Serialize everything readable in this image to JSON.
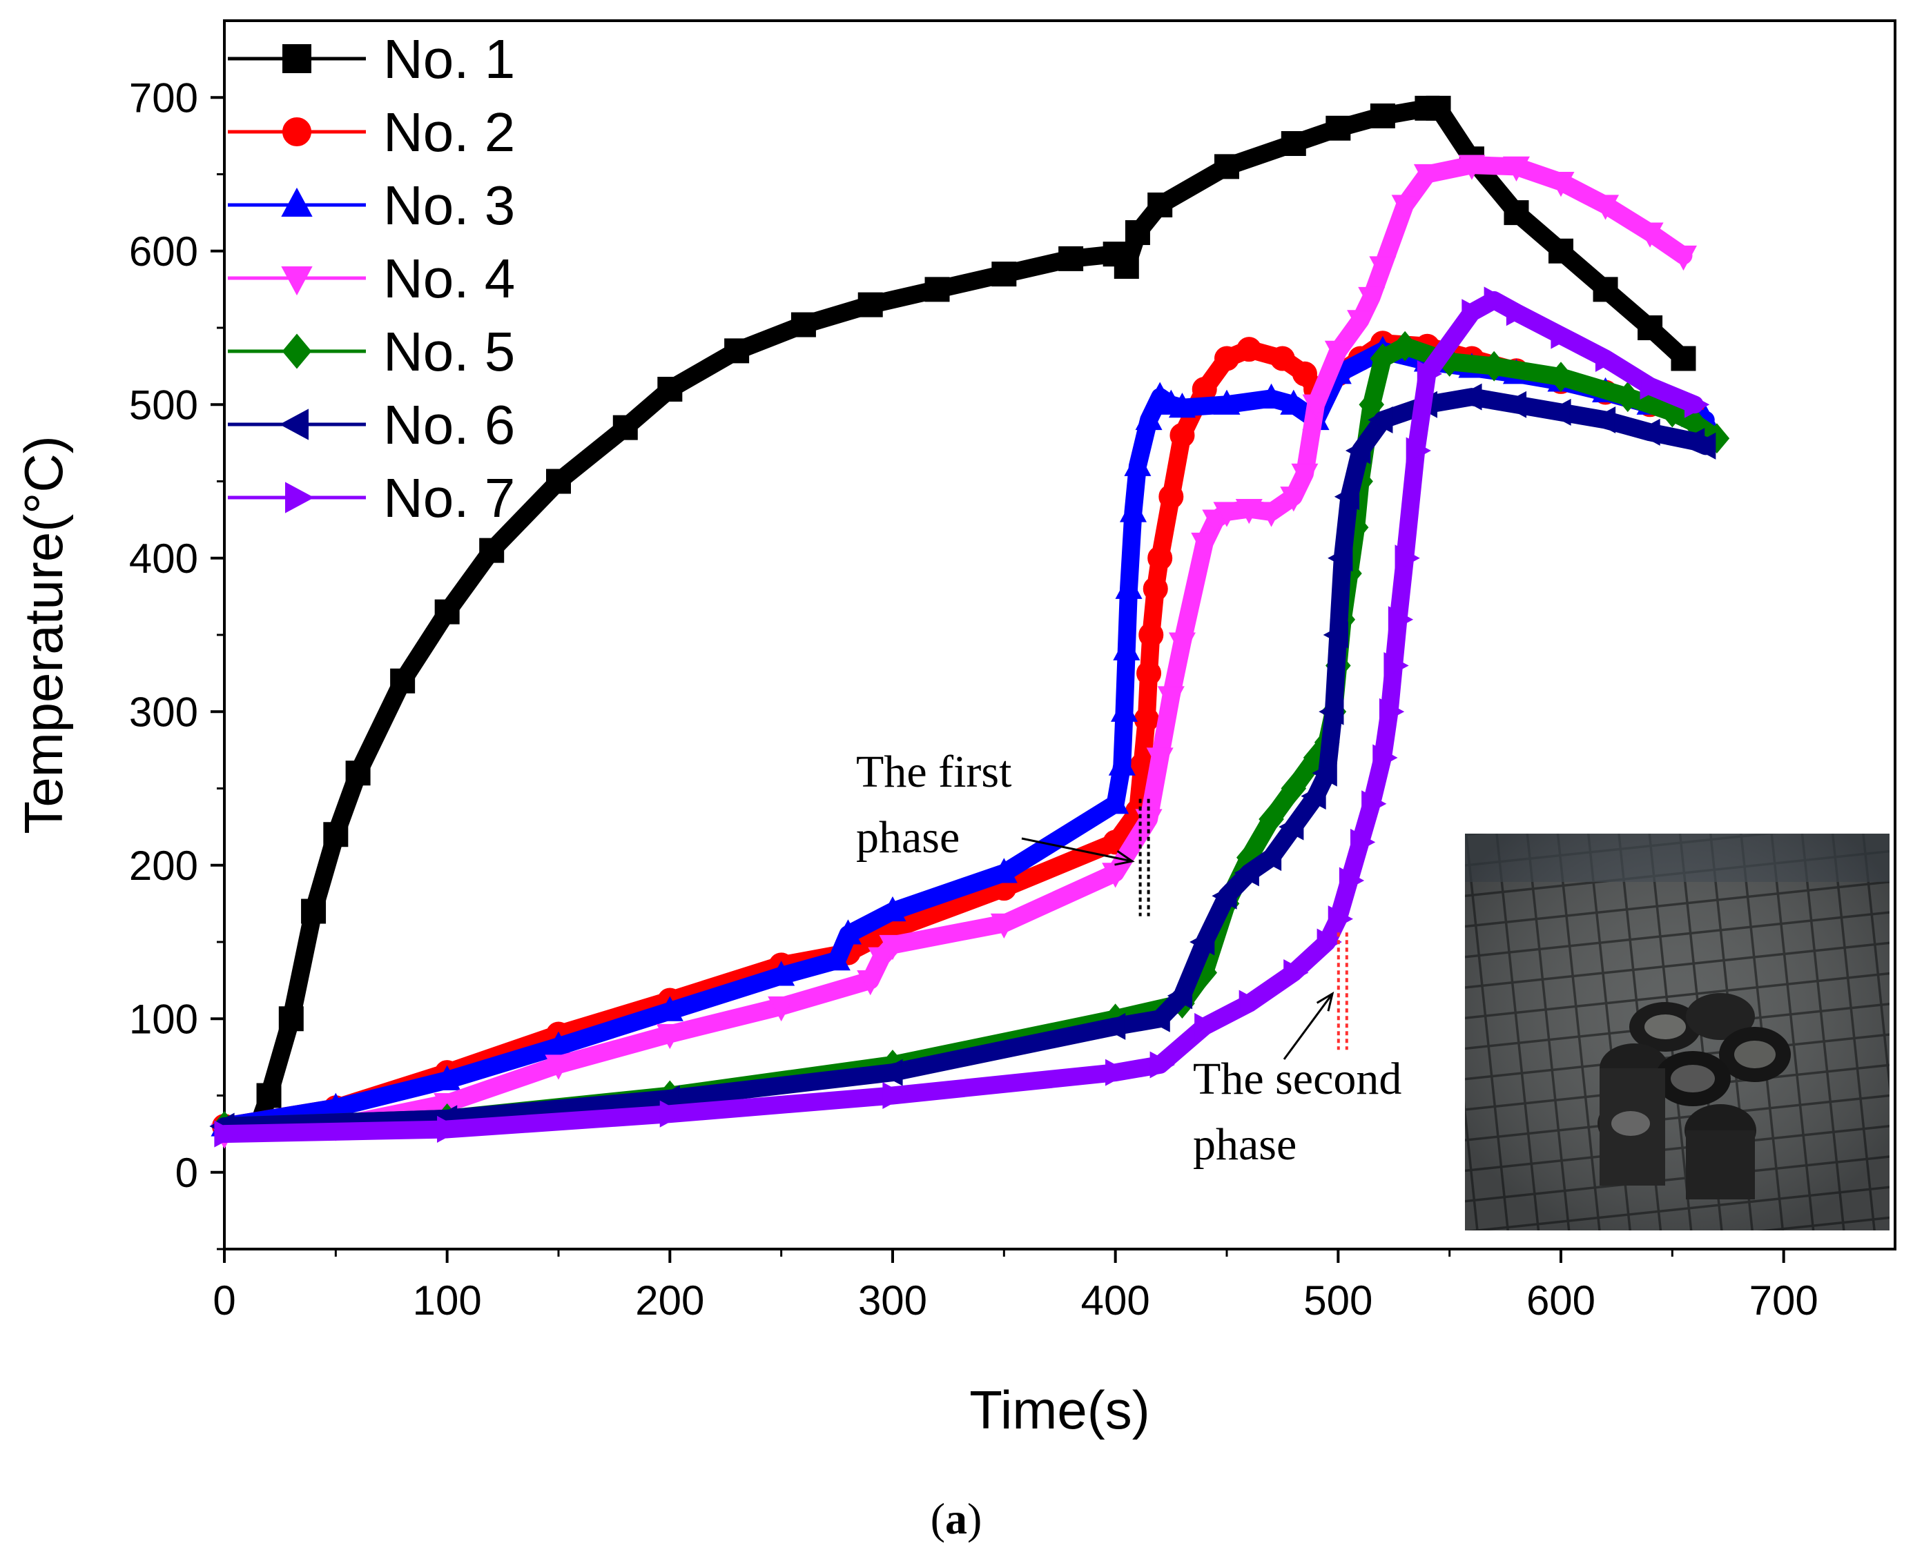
{
  "chart_data": {
    "type": "line",
    "title": "",
    "xlabel": "Time(s)",
    "ylabel": "Temperature(°C)",
    "xlim": [
      0,
      750
    ],
    "ylim": [
      -50,
      750
    ],
    "xticks": [
      0,
      100,
      200,
      300,
      400,
      500,
      600,
      700
    ],
    "yticks": [
      0,
      100,
      200,
      300,
      400,
      500,
      600,
      700
    ],
    "legend_position": "top-left",
    "series": [
      {
        "name": "No. 1",
        "color": "#000000",
        "marker": "square",
        "x": [
          15,
          20,
          30,
          40,
          50,
          60,
          80,
          100,
          120,
          150,
          180,
          200,
          230,
          260,
          290,
          320,
          350,
          380,
          400,
          405,
          410,
          420,
          450,
          480,
          500,
          520,
          540,
          545,
          560,
          580,
          600,
          620,
          640,
          655
        ],
        "y": [
          30,
          50,
          100,
          170,
          220,
          260,
          320,
          365,
          405,
          450,
          485,
          510,
          535,
          552,
          565,
          575,
          585,
          595,
          598,
          590,
          612,
          630,
          655,
          670,
          680,
          688,
          693,
          693,
          660,
          625,
          600,
          575,
          550,
          530
        ]
      },
      {
        "name": "No. 2",
        "color": "#ff0000",
        "marker": "circle",
        "x": [
          0,
          50,
          100,
          150,
          200,
          250,
          280,
          300,
          350,
          400,
          410,
          412,
          414,
          415,
          416,
          418,
          420,
          425,
          430,
          440,
          450,
          460,
          475,
          485,
          490,
          500,
          510,
          520,
          540,
          560,
          580,
          600,
          620,
          640,
          660
        ],
        "y": [
          30,
          42,
          65,
          90,
          112,
          135,
          143,
          158,
          185,
          215,
          235,
          265,
          295,
          325,
          350,
          380,
          400,
          440,
          480,
          510,
          530,
          536,
          530,
          520,
          510,
          520,
          530,
          540,
          538,
          530,
          522,
          515,
          508,
          500,
          495
        ]
      },
      {
        "name": "No. 3",
        "color": "#0000ff",
        "marker": "triangle-up",
        "x": [
          0,
          50,
          100,
          150,
          200,
          250,
          275,
          280,
          300,
          350,
          400,
          403,
          404,
          405,
          406,
          408,
          410,
          415,
          420,
          425,
          430,
          450,
          470,
          480,
          490,
          500,
          520,
          540,
          560,
          580,
          600,
          620,
          640,
          660,
          665
        ],
        "y": [
          30,
          42,
          60,
          82,
          105,
          128,
          138,
          155,
          170,
          195,
          240,
          265,
          300,
          340,
          380,
          430,
          460,
          490,
          505,
          500,
          498,
          500,
          504,
          500,
          490,
          520,
          535,
          528,
          524,
          520,
          515,
          508,
          500,
          492,
          490
        ]
      },
      {
        "name": "No. 4",
        "color": "#ff33ff",
        "marker": "triangle-down",
        "x": [
          0,
          50,
          100,
          150,
          200,
          250,
          290,
          295,
          300,
          350,
          400,
          415,
          420,
          425,
          430,
          440,
          445,
          450,
          460,
          470,
          480,
          485,
          490,
          500,
          510,
          515,
          520,
          530,
          540,
          560,
          580,
          600,
          620,
          640,
          655
        ],
        "y": [
          25,
          30,
          45,
          70,
          90,
          108,
          125,
          140,
          148,
          162,
          195,
          230,
          270,
          310,
          345,
          410,
          425,
          430,
          432,
          430,
          440,
          455,
          500,
          535,
          555,
          570,
          590,
          630,
          650,
          656,
          655,
          645,
          630,
          612,
          597
        ]
      },
      {
        "name": "No. 5",
        "color": "#008000",
        "marker": "diamond",
        "x": [
          0,
          100,
          200,
          300,
          400,
          430,
          440,
          450,
          460,
          470,
          480,
          490,
          495,
          498,
          500,
          502,
          505,
          508,
          510,
          515,
          520,
          530,
          550,
          570,
          600,
          630,
          650,
          660,
          670
        ],
        "y": [
          30,
          35,
          50,
          70,
          100,
          110,
          130,
          175,
          205,
          230,
          250,
          270,
          280,
          300,
          330,
          360,
          390,
          420,
          450,
          500,
          530,
          538,
          528,
          525,
          518,
          505,
          495,
          488,
          478
        ]
      },
      {
        "name": "No. 6",
        "color": "#00008b",
        "marker": "triangle-left",
        "x": [
          0,
          100,
          200,
          300,
          400,
          420,
          430,
          440,
          450,
          460,
          470,
          480,
          490,
          495,
          498,
          500,
          502,
          505,
          510,
          520,
          540,
          560,
          580,
          600,
          620,
          640,
          660,
          665
        ],
        "y": [
          30,
          35,
          48,
          65,
          95,
          100,
          115,
          150,
          180,
          195,
          205,
          225,
          245,
          260,
          300,
          350,
          400,
          440,
          470,
          490,
          500,
          505,
          500,
          495,
          490,
          482,
          476,
          473
        ]
      },
      {
        "name": "No. 7",
        "color": "#8b00ff",
        "marker": "triangle-right",
        "x": [
          0,
          100,
          200,
          300,
          400,
          420,
          440,
          460,
          480,
          495,
          500,
          505,
          510,
          515,
          520,
          523,
          525,
          527,
          530,
          535,
          540,
          560,
          570,
          580,
          600,
          620,
          640,
          660
        ],
        "y": [
          25,
          28,
          38,
          50,
          65,
          70,
          95,
          110,
          130,
          150,
          165,
          190,
          215,
          240,
          270,
          300,
          330,
          360,
          400,
          470,
          520,
          560,
          568,
          560,
          545,
          530,
          512,
          500
        ]
      }
    ],
    "annotations": [
      {
        "lines": [
          "The  first",
          "phase"
        ],
        "target_x": 413,
        "target_y": 205
      },
      {
        "lines": [
          "The  second",
          "phase"
        ],
        "target_x": 502,
        "target_y": 118
      }
    ],
    "inset": "photograph-of-burned-battery-pack-on-wire-mesh"
  },
  "caption": {
    "open": "(",
    "letter": "a",
    "close": ")"
  }
}
